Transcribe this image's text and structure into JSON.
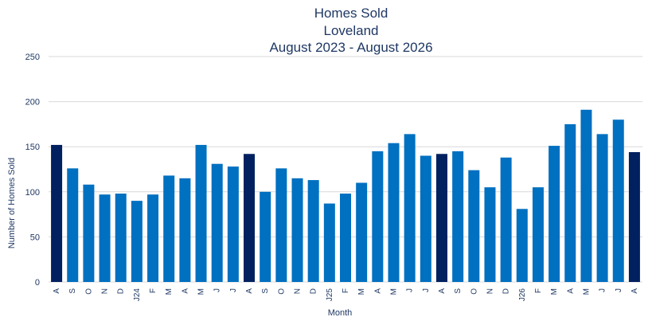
{
  "chart_data": {
    "type": "bar",
    "title": [
      "Homes Sold",
      "Loveland",
      "August 2023 - August 2026"
    ],
    "xlabel": "Month",
    "ylabel": "Number of Homes Sold",
    "ylim": [
      0,
      250
    ],
    "yticks": [
      0,
      50,
      100,
      150,
      200,
      250
    ],
    "grid": true,
    "categories": [
      "A",
      "S",
      "O",
      "N",
      "D",
      "J24",
      "F",
      "M",
      "A",
      "M",
      "J",
      "J",
      "A",
      "S",
      "O",
      "N",
      "D",
      "J25",
      "F",
      "M",
      "A",
      "M",
      "J",
      "J",
      "A",
      "S",
      "O",
      "N",
      "D",
      "J26",
      "F",
      "M",
      "A",
      "M",
      "J",
      "J",
      "A"
    ],
    "values": [
      152,
      126,
      108,
      97,
      98,
      90,
      97,
      118,
      115,
      152,
      131,
      128,
      142,
      100,
      126,
      115,
      113,
      87,
      98,
      110,
      145,
      154,
      164,
      140,
      142,
      145,
      124,
      105,
      138,
      81,
      105,
      151,
      175,
      191,
      164,
      180,
      144
    ],
    "colors": {
      "default": "#0070c0",
      "highlight": "#002060"
    },
    "highlighted_categories_index": [
      0,
      12,
      24,
      36
    ]
  }
}
